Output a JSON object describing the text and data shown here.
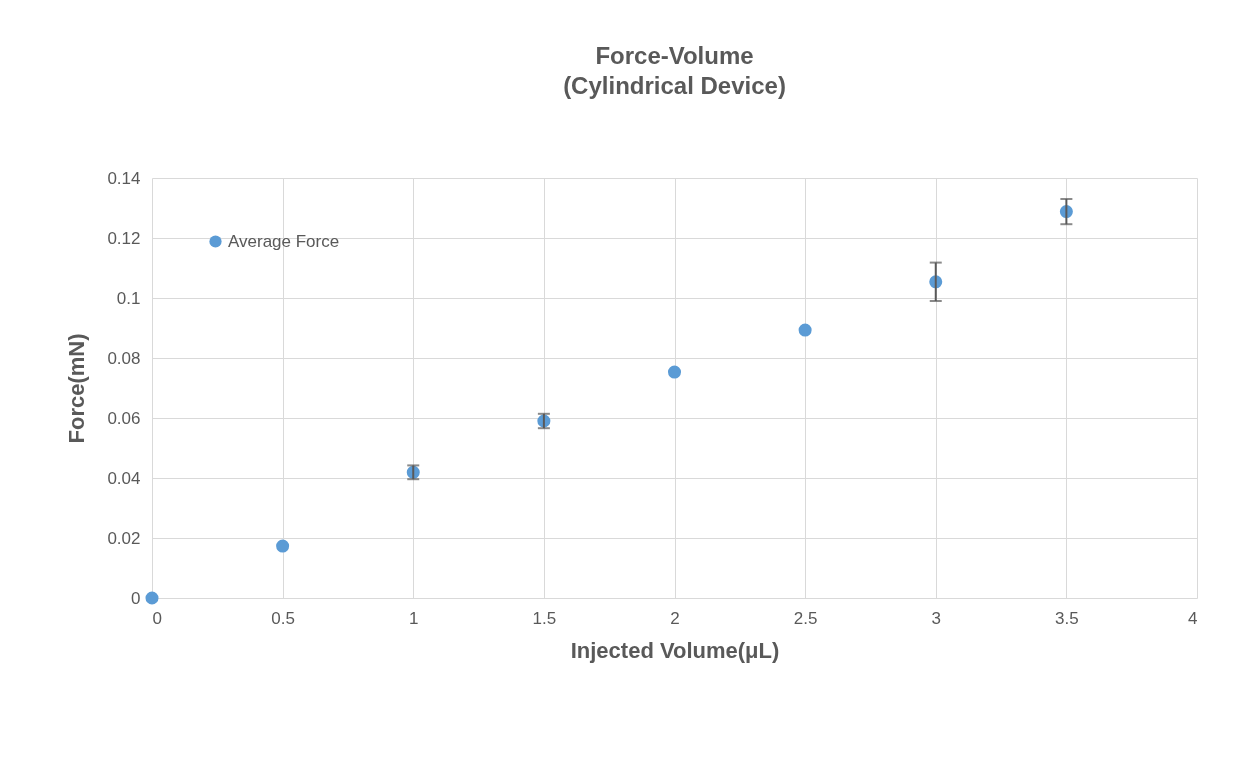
{
  "chart_data": {
    "type": "scatter",
    "title": "Force-Volume",
    "subtitle": "(Cylindrical Device)",
    "xlabel": "Injected Volume(μL)",
    "ylabel": "Force(mN)",
    "x": [
      0,
      0.5,
      1,
      1.5,
      2,
      2.5,
      3,
      3.5
    ],
    "series": [
      {
        "name": "Average Force",
        "color": "#5b9bd5",
        "values": [
          0,
          0.0173,
          0.0419,
          0.059,
          0.0753,
          0.0893,
          0.1054,
          0.1288
        ],
        "errors": [
          null,
          null,
          0.0023,
          0.0024,
          null,
          null,
          0.0064,
          0.0042
        ]
      }
    ],
    "xlim": [
      0,
      4
    ],
    "xticks": [
      0,
      0.5,
      1,
      1.5,
      2,
      2.5,
      3,
      3.5,
      4
    ],
    "ylim": [
      0,
      0.14
    ],
    "yticks": [
      0,
      0.02,
      0.04,
      0.06,
      0.08,
      0.1,
      0.12,
      0.14
    ],
    "grid": true,
    "legend": "top left",
    "marker": "circle"
  }
}
